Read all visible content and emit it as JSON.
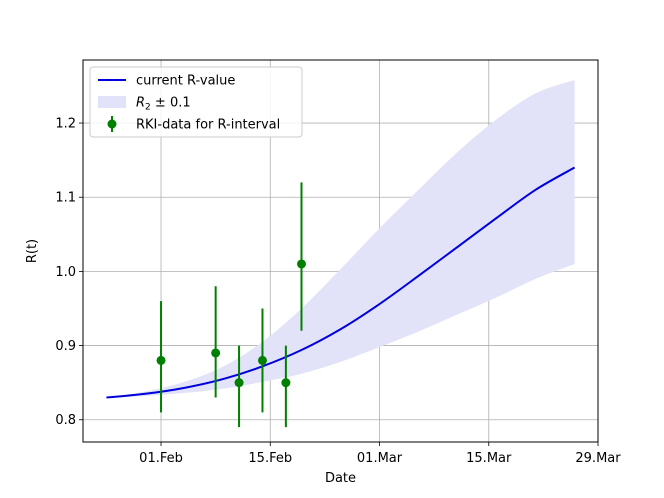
{
  "chart_data": {
    "type": "line",
    "title": "",
    "xlabel": "Date",
    "ylabel": "R(t)",
    "x_type": "date",
    "xlim": [
      "2021-01-22",
      "2021-03-29"
    ],
    "ylim": [
      0.77,
      1.285
    ],
    "x_ticks": [
      {
        "date": "2021-02-01",
        "label": "01.Feb"
      },
      {
        "date": "2021-02-15",
        "label": "15.Feb"
      },
      {
        "date": "2021-03-01",
        "label": "01.Mar"
      },
      {
        "date": "2021-03-15",
        "label": "15.Mar"
      },
      {
        "date": "2021-03-29",
        "label": "29.Mar"
      }
    ],
    "y_ticks": [
      0.8,
      0.9,
      1.0,
      1.1,
      1.2
    ],
    "y_tick_labels": [
      "0.8",
      "0.9",
      "1.0",
      "1.1",
      "1.2"
    ],
    "grid": true,
    "legend_position": "top-left",
    "series": [
      {
        "name": "current R-value",
        "kind": "line",
        "color": "#0000dd",
        "x": [
          "2021-01-25",
          "2021-01-30",
          "2021-02-04",
          "2021-02-09",
          "2021-02-14",
          "2021-02-19",
          "2021-02-24",
          "2021-03-01",
          "2021-03-06",
          "2021-03-11",
          "2021-03-16",
          "2021-03-21",
          "2021-03-26"
        ],
        "y": [
          0.83,
          0.835,
          0.843,
          0.855,
          0.872,
          0.894,
          0.922,
          0.956,
          0.994,
          1.033,
          1.072,
          1.11,
          1.14
        ]
      },
      {
        "name": "R_2 ± 0.1",
        "legend_label_prefix": "R",
        "legend_label_sub": "2",
        "legend_label_suffix": " ± 0.1",
        "kind": "band",
        "color": "#e2e2f8",
        "x": [
          "2021-01-25",
          "2021-01-30",
          "2021-02-04",
          "2021-02-09",
          "2021-02-14",
          "2021-02-19",
          "2021-02-24",
          "2021-03-01",
          "2021-03-06",
          "2021-03-11",
          "2021-03-16",
          "2021-03-21",
          "2021-03-26"
        ],
        "lower": [
          0.83,
          0.832,
          0.836,
          0.842,
          0.851,
          0.862,
          0.878,
          0.898,
          0.919,
          0.942,
          0.965,
          0.99,
          1.01
        ],
        "upper": [
          0.83,
          0.838,
          0.851,
          0.872,
          0.905,
          0.95,
          1.003,
          1.058,
          1.11,
          1.161,
          1.205,
          1.24,
          1.258
        ]
      },
      {
        "name": "RKI-data for R-interval",
        "kind": "errorbar",
        "color": "#008000",
        "x": [
          "2021-02-01",
          "2021-02-08",
          "2021-02-11",
          "2021-02-14",
          "2021-02-17",
          "2021-02-19"
        ],
        "y": [
          0.88,
          0.89,
          0.85,
          0.88,
          0.85,
          1.01
        ],
        "lower": [
          0.81,
          0.83,
          0.79,
          0.81,
          0.79,
          0.92
        ],
        "upper": [
          0.96,
          0.98,
          0.9,
          0.95,
          0.9,
          1.12
        ]
      }
    ]
  }
}
